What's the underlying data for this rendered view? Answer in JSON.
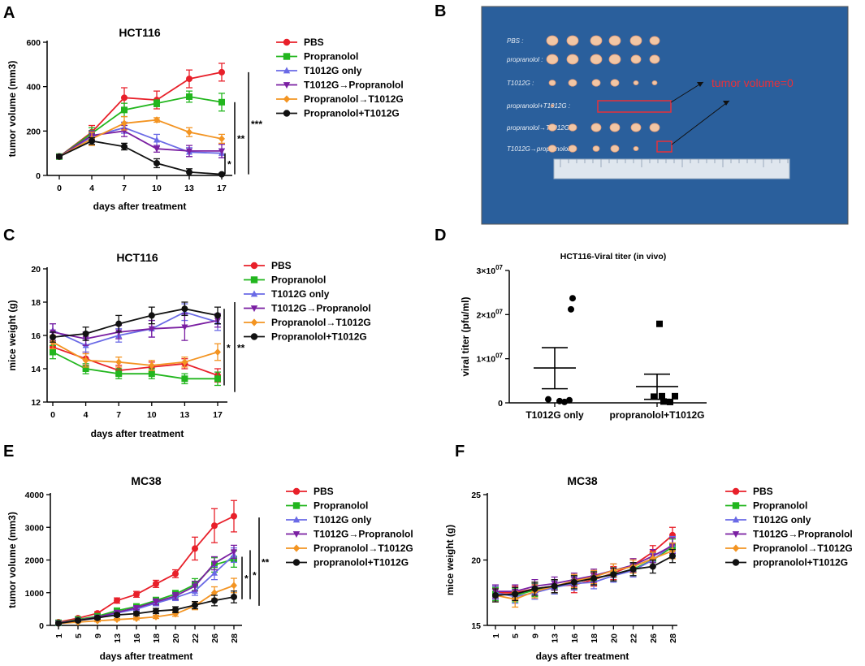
{
  "panels": [
    {
      "letter": "A"
    },
    {
      "letter": "B"
    },
    {
      "letter": "C"
    },
    {
      "letter": "D"
    },
    {
      "letter": "E"
    },
    {
      "letter": "F"
    }
  ],
  "photo": {
    "row_labels": [
      "PBS :",
      "propranolol :",
      "T1012G :",
      "propranolol+T1012G :",
      "propranolol→T1012G :",
      "T1012G→propranolol :"
    ],
    "annotation": "tumor volume=0",
    "colors": {
      "background": "#2a5f9c",
      "tumor": "#f2c6a4",
      "annotation": "#e8303a"
    }
  },
  "chart_data": [
    {
      "id": "A",
      "type": "line",
      "title": "HCT116",
      "xlabel": "days after treatment",
      "ylabel": "tumor volume (mm3)",
      "categories": [
        "0",
        "4",
        "7",
        "10",
        "13",
        "17"
      ],
      "ylim": [
        0,
        600
      ],
      "yticks": [
        "0",
        "200",
        "400",
        "600"
      ],
      "series": [
        {
          "name": "PBS",
          "color": "#e8202a",
          "marker": "circle",
          "values": [
            85,
            195,
            350,
            340,
            435,
            465
          ],
          "err": [
            8,
            30,
            45,
            40,
            40,
            40
          ]
        },
        {
          "name": "Propranolol",
          "color": "#22b61e",
          "marker": "square",
          "values": [
            85,
            190,
            295,
            325,
            355,
            330
          ],
          "err": [
            8,
            25,
            30,
            15,
            25,
            40
          ]
        },
        {
          "name": "T1012G only",
          "color": "#6a6ae6",
          "marker": "triangle",
          "values": [
            85,
            175,
            215,
            160,
            105,
            100
          ],
          "err": [
            8,
            25,
            25,
            25,
            20,
            20
          ]
        },
        {
          "name": "T1012G→Propranolol",
          "color": "#7a1fa2",
          "marker": "triangle-down",
          "values": [
            85,
            180,
            200,
            120,
            110,
            110
          ],
          "err": [
            8,
            20,
            25,
            15,
            25,
            30
          ]
        },
        {
          "name": "Propranolol→T1012G",
          "color": "#f39422",
          "marker": "diamond",
          "values": [
            85,
            165,
            235,
            250,
            195,
            165
          ],
          "err": [
            8,
            30,
            30,
            10,
            20,
            20
          ]
        },
        {
          "name": "Propranolol+T1012G",
          "color": "#111111",
          "marker": "circle",
          "values": [
            85,
            155,
            130,
            55,
            15,
            5
          ],
          "err": [
            8,
            15,
            15,
            20,
            15,
            5
          ]
        }
      ],
      "significance": [
        "*",
        "**",
        "***"
      ]
    },
    {
      "id": "C",
      "type": "line",
      "title": "HCT116",
      "xlabel": "days after treatment",
      "ylabel": "mice weight (g)",
      "categories": [
        "0",
        "4",
        "7",
        "10",
        "13",
        "17"
      ],
      "ylim": [
        12,
        20
      ],
      "yticks": [
        "12",
        "14",
        "16",
        "18",
        "20"
      ],
      "series": [
        {
          "name": "PBS",
          "color": "#e8202a",
          "marker": "circle",
          "values": [
            15.3,
            14.6,
            13.9,
            14.1,
            14.3,
            13.6
          ],
          "err": [
            0.4,
            0.4,
            0.3,
            0.3,
            0.3,
            0.4
          ]
        },
        {
          "name": "Propranolol",
          "color": "#22b61e",
          "marker": "square",
          "values": [
            15.0,
            14.0,
            13.7,
            13.7,
            13.4,
            13.4
          ],
          "err": [
            0.4,
            0.3,
            0.3,
            0.3,
            0.3,
            0.4
          ]
        },
        {
          "name": "T1012G only",
          "color": "#6a6ae6",
          "marker": "triangle",
          "values": [
            16.3,
            15.4,
            16.0,
            16.4,
            17.4,
            16.8
          ],
          "err": [
            0.4,
            0.4,
            0.4,
            0.5,
            0.5,
            0.5
          ]
        },
        {
          "name": "T1012G→Propranolol",
          "color": "#7a1fa2",
          "marker": "triangle-down",
          "values": [
            16.2,
            15.8,
            16.2,
            16.4,
            16.5,
            16.9
          ],
          "err": [
            0.5,
            0.4,
            0.4,
            0.5,
            0.8,
            0.4
          ]
        },
        {
          "name": "Propranolol→T1012G",
          "color": "#f39422",
          "marker": "diamond",
          "values": [
            15.6,
            14.5,
            14.4,
            14.2,
            14.4,
            15.0
          ],
          "err": [
            0.4,
            0.4,
            0.3,
            0.3,
            0.3,
            0.5
          ]
        },
        {
          "name": "Propranolol+T1012G",
          "color": "#111111",
          "marker": "circle",
          "values": [
            15.9,
            16.1,
            16.7,
            17.2,
            17.6,
            17.2
          ],
          "err": [
            0.3,
            0.4,
            0.5,
            0.5,
            0.4,
            0.5
          ]
        }
      ],
      "significance": [
        "*",
        "**"
      ]
    },
    {
      "id": "D",
      "type": "scatter",
      "title": "HCT116-Viral titer (in vivo)",
      "xlabel": "",
      "ylabel": "viral titer (pfu/ml)",
      "categories": [
        "T1012G only",
        "propranolol+T1012G"
      ],
      "ylim": [
        0,
        30000000
      ],
      "yticks": [
        {
          "mant": "0",
          "exp": ""
        },
        {
          "mant": "1×10",
          "exp": "07"
        },
        {
          "mant": "2×10",
          "exp": "07"
        },
        {
          "mant": "3×10",
          "exp": "07"
        }
      ],
      "series": [
        {
          "name": "T1012G only",
          "marker": "circle",
          "points": [
            23700000,
            21200000,
            800000,
            400000,
            200000,
            600000
          ],
          "mean": 7900000,
          "sem_low": 3200000,
          "sem_high": 12500000
        },
        {
          "name": "propranolol+T1012G",
          "marker": "square",
          "points": [
            17900000,
            1500000,
            1400000,
            300000,
            200000,
            1500000
          ],
          "mean": 3700000,
          "sem_low": 800000,
          "sem_high": 6500000
        }
      ]
    },
    {
      "id": "E",
      "type": "line",
      "title": "MC38",
      "xlabel": "days after treatment",
      "ylabel": "tumor volume (mm3)",
      "categories": [
        "1",
        "5",
        "9",
        "13",
        "16",
        "18",
        "20",
        "22",
        "26",
        "28"
      ],
      "ylim": [
        0,
        4000
      ],
      "yticks": [
        "0",
        "1000",
        "2000",
        "3000",
        "4000"
      ],
      "series": [
        {
          "name": "PBS",
          "color": "#e8202a",
          "marker": "circle",
          "values": [
            100,
            220,
            370,
            760,
            950,
            1270,
            1580,
            2350,
            3050,
            3340
          ],
          "err": [
            30,
            40,
            50,
            80,
            90,
            110,
            120,
            350,
            520,
            480
          ]
        },
        {
          "name": "Propranolol",
          "color": "#22b61e",
          "marker": "square",
          "values": [
            80,
            180,
            280,
            450,
            580,
            760,
            960,
            1250,
            1850,
            2030
          ],
          "err": [
            20,
            30,
            40,
            60,
            70,
            100,
            110,
            180,
            220,
            250
          ]
        },
        {
          "name": "T1012G only",
          "color": "#6a6ae6",
          "marker": "triangle",
          "values": [
            70,
            150,
            220,
            380,
            500,
            680,
            850,
            1050,
            1600,
            2150
          ],
          "err": [
            20,
            30,
            40,
            50,
            60,
            80,
            90,
            130,
            200,
            220
          ]
        },
        {
          "name": "T1012G→Propranolol",
          "color": "#7a1fa2",
          "marker": "triangle-down",
          "values": [
            75,
            160,
            250,
            400,
            540,
            720,
            900,
            1200,
            1900,
            2250
          ],
          "err": [
            20,
            30,
            40,
            50,
            60,
            90,
            100,
            150,
            200,
            200
          ]
        },
        {
          "name": "Propranolol→T1012G",
          "color": "#f39422",
          "marker": "diamond",
          "values": [
            60,
            100,
            140,
            180,
            210,
            260,
            350,
            600,
            1000,
            1220
          ],
          "err": [
            20,
            20,
            30,
            30,
            40,
            50,
            70,
            120,
            180,
            220
          ]
        },
        {
          "name": "propranolol+T1012G",
          "color": "#111111",
          "marker": "circle",
          "values": [
            60,
            150,
            230,
            320,
            360,
            440,
            480,
            620,
            760,
            870
          ],
          "err": [
            20,
            30,
            40,
            50,
            60,
            80,
            90,
            110,
            160,
            180
          ]
        }
      ],
      "significance": [
        "*",
        "*",
        "**"
      ]
    },
    {
      "id": "F",
      "type": "line",
      "title": "MC38",
      "xlabel": "days after treatment",
      "ylabel": "mice weight (g)",
      "categories": [
        "1",
        "5",
        "9",
        "13",
        "16",
        "18",
        "20",
        "22",
        "26",
        "28"
      ],
      "ylim": [
        15,
        25
      ],
      "yticks": [
        "15",
        "20",
        "25"
      ],
      "series": [
        {
          "name": "PBS",
          "color": "#e8202a",
          "marker": "circle",
          "values": [
            17.5,
            17.5,
            17.8,
            18.0,
            18.1,
            18.5,
            19.0,
            19.6,
            20.6,
            21.9
          ],
          "err": [
            0.5,
            0.5,
            0.5,
            0.5,
            0.6,
            0.5,
            0.5,
            0.5,
            0.5,
            0.6
          ]
        },
        {
          "name": "Propranolol",
          "color": "#22b61e",
          "marker": "square",
          "values": [
            17.4,
            17.3,
            17.7,
            17.9,
            18.3,
            18.6,
            18.9,
            19.3,
            20.0,
            21.0
          ],
          "err": [
            0.5,
            0.5,
            0.5,
            0.5,
            0.5,
            0.5,
            0.5,
            0.5,
            0.5,
            0.6
          ]
        },
        {
          "name": "T1012G only",
          "color": "#6a6ae6",
          "marker": "triangle",
          "values": [
            17.5,
            17.2,
            17.5,
            17.9,
            18.2,
            18.3,
            18.8,
            19.2,
            20.0,
            21.2
          ],
          "err": [
            0.5,
            0.5,
            0.5,
            0.5,
            0.5,
            0.5,
            0.5,
            0.5,
            0.5,
            0.6
          ]
        },
        {
          "name": "T1012G→Propranolol",
          "color": "#7a1fa2",
          "marker": "triangle-down",
          "values": [
            17.6,
            17.6,
            18.0,
            18.2,
            18.5,
            18.8,
            19.2,
            19.6,
            20.3,
            21.1
          ],
          "err": [
            0.5,
            0.5,
            0.5,
            0.5,
            0.5,
            0.5,
            0.5,
            0.5,
            0.5,
            0.6
          ]
        },
        {
          "name": "Propranolol→T1012G",
          "color": "#f39422",
          "marker": "diamond",
          "values": [
            17.3,
            17.0,
            17.6,
            18.0,
            18.4,
            18.7,
            19.2,
            19.5,
            20.1,
            20.7
          ],
          "err": [
            0.5,
            0.6,
            0.5,
            0.5,
            0.5,
            0.5,
            0.5,
            0.5,
            0.5,
            0.6
          ]
        },
        {
          "name": "propranolol+T1012G",
          "color": "#111111",
          "marker": "circle",
          "values": [
            17.3,
            17.4,
            17.8,
            18.0,
            18.3,
            18.6,
            18.9,
            19.3,
            19.5,
            20.3
          ],
          "err": [
            0.5,
            0.5,
            0.5,
            0.5,
            0.5,
            0.5,
            0.5,
            0.5,
            0.5,
            0.5
          ]
        }
      ]
    }
  ]
}
